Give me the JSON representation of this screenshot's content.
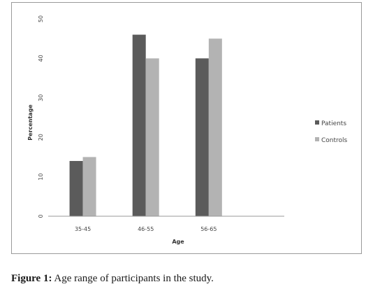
{
  "caption": {
    "label": "Figure 1:",
    "text": " Age range of participants in the study."
  },
  "chart_data": {
    "type": "bar",
    "title": "",
    "xlabel": "Age",
    "ylabel": "Percentage",
    "categories": [
      "35-45",
      "46-55",
      "56-65"
    ],
    "series": [
      {
        "name": "Patients",
        "values": [
          14,
          46,
          40
        ],
        "color": "#5b5b5b"
      },
      {
        "name": "Controls",
        "values": [
          15,
          40,
          45
        ],
        "color": "#b3b3b3"
      }
    ],
    "ylim": [
      0,
      50
    ],
    "yticks": [
      "0",
      "10",
      "20",
      "30",
      "40",
      "50"
    ],
    "grid": false,
    "legend": "right"
  }
}
